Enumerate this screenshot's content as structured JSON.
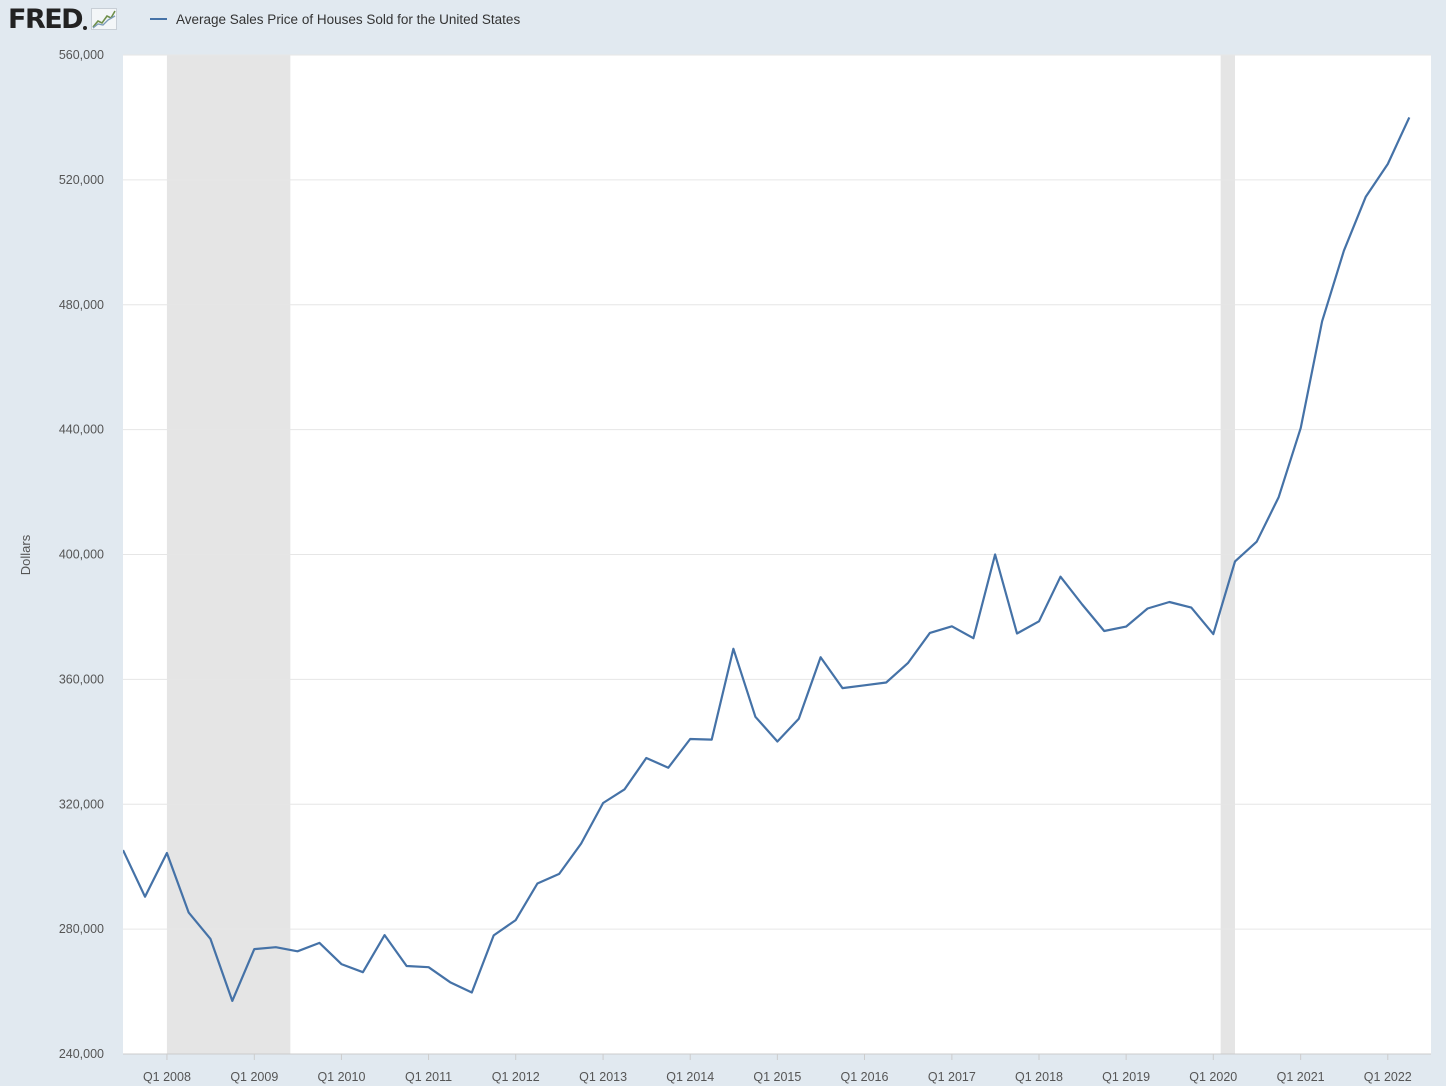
{
  "header": {
    "logo_text": "FRED",
    "legend_label": "Average Sales Price of Houses Sold for the United States"
  },
  "colors": {
    "page_background": "#e1e9f0",
    "plot_background": "#ffffff",
    "series_line": "#4572a7",
    "recession_shade": "#e5e5e5",
    "gridline": "#e6e6e6"
  },
  "chart_data": {
    "type": "line",
    "title": "",
    "xlabel": "",
    "ylabel": "Dollars",
    "ylim": [
      240000,
      560000
    ],
    "y_ticks": [
      240000,
      280000,
      320000,
      360000,
      400000,
      440000,
      480000,
      520000,
      560000
    ],
    "y_tick_labels": [
      "240,000",
      "280,000",
      "320,000",
      "360,000",
      "400,000",
      "440,000",
      "480,000",
      "520,000",
      "560,000"
    ],
    "x_range": [
      "2007-07-01",
      "2022-07-01"
    ],
    "x_tick_labels": [
      "Q1 2008",
      "Q1 2009",
      "Q1 2010",
      "Q1 2011",
      "Q1 2012",
      "Q1 2013",
      "Q1 2014",
      "Q1 2015",
      "Q1 2016",
      "Q1 2017",
      "Q1 2018",
      "Q1 2019",
      "Q1 2020",
      "Q1 2021",
      "Q1 2022"
    ],
    "grid": true,
    "legend_position": "top",
    "recessions": [
      {
        "start": "2008-01-01",
        "end": "2009-06-01"
      },
      {
        "start": "2020-02-01",
        "end": "2020-04-01"
      }
    ],
    "series": [
      {
        "name": "Average Sales Price of Houses Sold for the United States",
        "x": [
          "2007-07-01",
          "2007-10-01",
          "2008-01-01",
          "2008-04-01",
          "2008-07-01",
          "2008-10-01",
          "2009-01-01",
          "2009-04-01",
          "2009-07-01",
          "2009-10-01",
          "2010-01-01",
          "2010-04-01",
          "2010-07-01",
          "2010-10-01",
          "2011-01-01",
          "2011-04-01",
          "2011-07-01",
          "2011-10-01",
          "2012-01-01",
          "2012-04-01",
          "2012-07-01",
          "2012-10-01",
          "2013-01-01",
          "2013-04-01",
          "2013-07-01",
          "2013-10-01",
          "2014-01-01",
          "2014-04-01",
          "2014-07-01",
          "2014-10-01",
          "2015-01-01",
          "2015-04-01",
          "2015-07-01",
          "2015-10-01",
          "2016-01-01",
          "2016-04-01",
          "2016-07-01",
          "2016-10-01",
          "2017-01-01",
          "2017-04-01",
          "2017-07-01",
          "2017-10-01",
          "2018-01-01",
          "2018-04-01",
          "2018-07-01",
          "2018-10-01",
          "2019-01-01",
          "2019-04-01",
          "2019-07-01",
          "2019-10-01",
          "2020-01-01",
          "2020-04-01",
          "2020-07-01",
          "2020-10-01",
          "2021-01-01",
          "2021-04-01",
          "2021-07-01",
          "2021-10-01",
          "2022-01-01",
          "2022-04-01"
        ],
        "values": [
          305300,
          290400,
          304400,
          285300,
          276900,
          257000,
          273600,
          274200,
          272900,
          275600,
          268800,
          266200,
          278100,
          268200,
          267800,
          263000,
          259700,
          278000,
          282900,
          294600,
          297700,
          307400,
          320400,
          324800,
          334800,
          331700,
          340900,
          340700,
          369800,
          348000,
          340100,
          347400,
          367100,
          357200,
          358100,
          359000,
          365200,
          374900,
          377000,
          373200,
          400000,
          374700,
          378600,
          392900,
          384000,
          375500,
          376900,
          382700,
          384800,
          383000,
          374500,
          397800,
          404100,
          418400,
          440500,
          474700,
          497300,
          514600,
          525100,
          540000
        ]
      }
    ]
  }
}
